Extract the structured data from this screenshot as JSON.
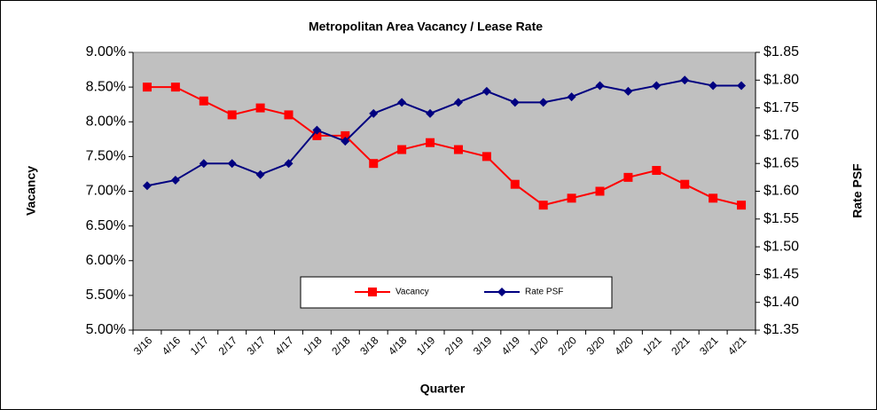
{
  "chart_data": {
    "type": "line",
    "title": "Metropolitan Area Vacancy / Lease Rate",
    "x_label": "Quarter",
    "y_label": "Vacancy",
    "y2_label": "Rate PSF",
    "categories": [
      "3/16",
      "4/16",
      "1/17",
      "2/17",
      "3/17",
      "4/17",
      "1/18",
      "2/18",
      "3/18",
      "4/18",
      "1/19",
      "2/19",
      "3/19",
      "4/19",
      "1/20",
      "2/20",
      "3/20",
      "4/20",
      "1/21",
      "2/21",
      "3/21",
      "4/21"
    ],
    "series": [
      {
        "name": "Vacancy",
        "color": "#ff0000",
        "marker": "square",
        "values": [
          8.5,
          8.5,
          8.3,
          8.1,
          8.2,
          8.1,
          7.8,
          7.8,
          7.4,
          7.6,
          7.7,
          7.6,
          7.5,
          7.1,
          6.8,
          6.9,
          7.0,
          7.2,
          7.3,
          7.1,
          6.9,
          6.8
        ]
      },
      {
        "name": "Rate PSF",
        "color": "#000080",
        "marker": "diamond",
        "axis": "y2",
        "values": [
          1.61,
          1.62,
          1.65,
          1.65,
          1.63,
          1.65,
          1.71,
          1.69,
          1.74,
          1.76,
          1.74,
          1.76,
          1.78,
          1.76,
          1.76,
          1.77,
          1.79,
          1.78,
          1.79,
          1.8,
          1.79,
          1.79
        ]
      }
    ],
    "ylim": [
      5,
      9
    ],
    "yticks": [
      {
        "value": 5,
        "label": "5.00%"
      },
      {
        "value": 5.5,
        "label": "5.50%"
      },
      {
        "value": 6,
        "label": "6.00%"
      },
      {
        "value": 6.5,
        "label": "6.50%"
      },
      {
        "value": 7,
        "label": "7.00%"
      },
      {
        "value": 7.5,
        "label": "7.50%"
      },
      {
        "value": 8,
        "label": "8.00%"
      },
      {
        "value": 8.5,
        "label": "8.50%"
      },
      {
        "value": 9,
        "label": "9.00%"
      }
    ],
    "y2lim": [
      1.35,
      1.85
    ],
    "y2ticks": [
      {
        "value": 1.35,
        "label": "$1.35"
      },
      {
        "value": 1.4,
        "label": "$1.40"
      },
      {
        "value": 1.45,
        "label": "$1.45"
      },
      {
        "value": 1.5,
        "label": "$1.50"
      },
      {
        "value": 1.55,
        "label": "$1.55"
      },
      {
        "value": 1.6,
        "label": "$1.60"
      },
      {
        "value": 1.65,
        "label": "$1.65"
      },
      {
        "value": 1.7,
        "label": "$1.70"
      },
      {
        "value": 1.75,
        "label": "$1.75"
      },
      {
        "value": 1.8,
        "label": "$1.80"
      },
      {
        "value": 1.85,
        "label": "$1.85"
      }
    ],
    "plot_background": "#c0c0c0",
    "grid": false
  }
}
